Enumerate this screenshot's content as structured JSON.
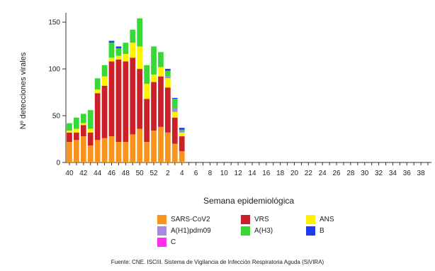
{
  "chart_data": {
    "type": "bar",
    "stacked": true,
    "xlabel": "Semana epidemiológica",
    "ylabel": "Nº detecciones virales",
    "ylim": [
      0,
      160
    ],
    "yticks": [
      0,
      50,
      100,
      150
    ],
    "x_tick_labels": [
      "40",
      "42",
      "44",
      "46",
      "48",
      "50",
      "52",
      "2",
      "4",
      "6",
      "8",
      "10",
      "12",
      "14",
      "16",
      "18",
      "20",
      "22",
      "24",
      "26",
      "28",
      "30",
      "32",
      "34",
      "36",
      "38"
    ],
    "categories": [
      "40",
      "41",
      "42",
      "43",
      "44",
      "45",
      "46",
      "47",
      "48",
      "49",
      "50",
      "51",
      "52",
      "1",
      "2",
      "3",
      "4",
      "5",
      "6",
      "7",
      "8",
      "9",
      "10",
      "11",
      "12",
      "13",
      "14",
      "15",
      "16",
      "17",
      "18",
      "19",
      "20",
      "21",
      "22",
      "23",
      "24",
      "25",
      "26",
      "27",
      "28",
      "29",
      "30",
      "31",
      "32",
      "33",
      "34",
      "35",
      "36",
      "37",
      "38",
      "39"
    ],
    "series": [
      {
        "name": "SARS-CoV2",
        "color": "#F7941D",
        "values": [
          22,
          24,
          28,
          18,
          24,
          26,
          28,
          22,
          22,
          30,
          36,
          22,
          34,
          38,
          32,
          20,
          12,
          0,
          0,
          0,
          0,
          0,
          0,
          0,
          0,
          0,
          0,
          0,
          0,
          0,
          0,
          0,
          0,
          0,
          0,
          0,
          0,
          0,
          0,
          0,
          0,
          0,
          0,
          0,
          0,
          0,
          0,
          0,
          0,
          0,
          0,
          0
        ]
      },
      {
        "name": "VRS",
        "color": "#CC2029",
        "values": [
          10,
          8,
          12,
          14,
          50,
          56,
          80,
          88,
          86,
          82,
          64,
          46,
          52,
          54,
          48,
          28,
          16,
          0,
          0,
          0,
          0,
          0,
          0,
          0,
          0,
          0,
          0,
          0,
          0,
          0,
          0,
          0,
          0,
          0,
          0,
          0,
          0,
          0,
          0,
          0,
          0,
          0,
          0,
          0,
          0,
          0,
          0,
          0,
          0,
          0,
          0,
          0
        ]
      },
      {
        "name": "ANS",
        "color": "#FFF200",
        "values": [
          2,
          4,
          2,
          4,
          4,
          10,
          4,
          4,
          8,
          16,
          24,
          16,
          8,
          10,
          10,
          6,
          4,
          0,
          0,
          0,
          0,
          0,
          0,
          0,
          0,
          0,
          0,
          0,
          0,
          0,
          0,
          0,
          0,
          0,
          0,
          0,
          0,
          0,
          0,
          0,
          0,
          0,
          0,
          0,
          0,
          0,
          0,
          0,
          0,
          0,
          0,
          0
        ]
      },
      {
        "name": "A(H1)pdm09",
        "color": "#A78BDA",
        "values": [
          0,
          0,
          0,
          0,
          0,
          0,
          0,
          0,
          0,
          0,
          0,
          0,
          0,
          0,
          2,
          4,
          1,
          0,
          0,
          0,
          0,
          0,
          0,
          0,
          0,
          0,
          0,
          0,
          0,
          0,
          0,
          0,
          0,
          0,
          0,
          0,
          0,
          0,
          0,
          0,
          0,
          0,
          0,
          0,
          0,
          0,
          0,
          0,
          0,
          0,
          0,
          0
        ]
      },
      {
        "name": "A(H3)",
        "color": "#39D839",
        "values": [
          8,
          12,
          10,
          20,
          12,
          12,
          16,
          8,
          12,
          14,
          30,
          20,
          30,
          16,
          6,
          10,
          2,
          0,
          0,
          0,
          0,
          0,
          0,
          0,
          0,
          0,
          0,
          0,
          0,
          0,
          0,
          0,
          0,
          0,
          0,
          0,
          0,
          0,
          0,
          0,
          0,
          0,
          0,
          0,
          0,
          0,
          0,
          0,
          0,
          0,
          0,
          0
        ]
      },
      {
        "name": "B",
        "color": "#1F3BF0",
        "values": [
          0,
          0,
          0,
          0,
          0,
          0,
          2,
          2,
          0,
          0,
          0,
          0,
          0,
          0,
          2,
          1,
          2,
          0,
          0,
          0,
          0,
          0,
          0,
          0,
          0,
          0,
          0,
          0,
          0,
          0,
          0,
          0,
          0,
          0,
          0,
          0,
          0,
          0,
          0,
          0,
          0,
          0,
          0,
          0,
          0,
          0,
          0,
          0,
          0,
          0,
          0,
          0
        ]
      },
      {
        "name": "C",
        "color": "#FF2DF0",
        "values": [
          0,
          0,
          0,
          0,
          0,
          0,
          0,
          0,
          0,
          0,
          0,
          0,
          0,
          0,
          0,
          0,
          0,
          0,
          0,
          0,
          0,
          0,
          0,
          0,
          0,
          0,
          0,
          0,
          0,
          0,
          0,
          0,
          0,
          0,
          0,
          0,
          0,
          0,
          0,
          0,
          0,
          0,
          0,
          0,
          0,
          0,
          0,
          0,
          0,
          0,
          0,
          0
        ]
      }
    ],
    "legend": {
      "placement": "bottom",
      "items": [
        {
          "label": "SARS-CoV2",
          "color": "#F7941D"
        },
        {
          "label": "VRS",
          "color": "#CC2029"
        },
        {
          "label": "ANS",
          "color": "#FFF200"
        },
        {
          "label": "A(H1)pdm09",
          "color": "#A78BDA"
        },
        {
          "label": "A(H3)",
          "color": "#39D839"
        },
        {
          "label": "B",
          "color": "#1F3BF0"
        },
        {
          "label": "C",
          "color": "#FF2DF0"
        }
      ]
    },
    "grid": false
  },
  "source_note": "Fuente: CNE. ISCIII. Sistema de Vigilancia de Infección Respiratoria Aguda (SiVIRA)"
}
